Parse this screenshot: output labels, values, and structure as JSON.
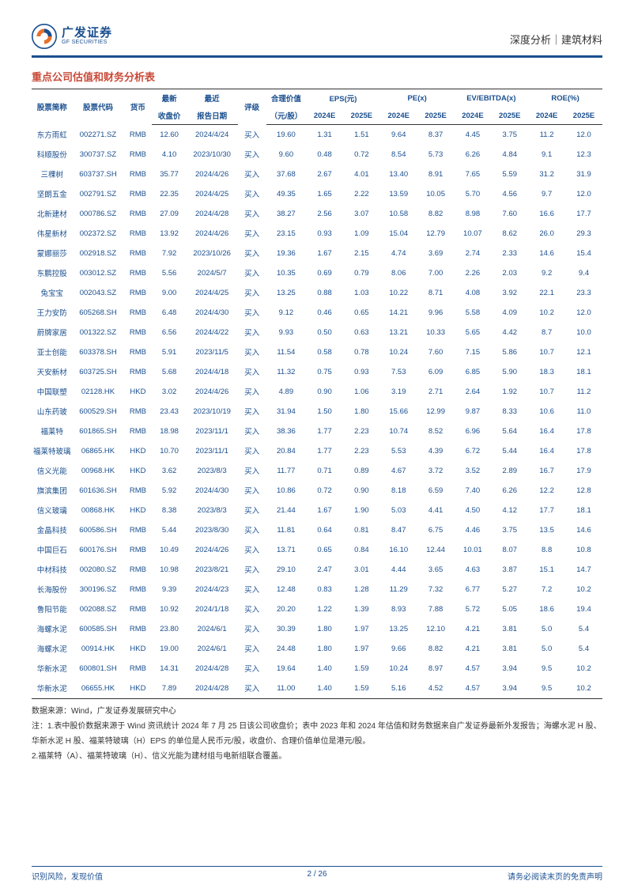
{
  "header": {
    "logo_cn": "广发证券",
    "logo_en": "GF SECURITIES",
    "right_text": "深度分析｜建筑材料"
  },
  "section_title": "重点公司估值和财务分析表",
  "table": {
    "header_row1": {
      "name": "股票简称",
      "code": "股票代码",
      "currency": "货币",
      "price_top": "最新",
      "date_top": "最近",
      "rating": "评级",
      "fair_top": "合理价值",
      "eps": "EPS(元)",
      "pe": "PE(x)",
      "ev": "EV/EBITDA(x)",
      "roe": "ROE(%)"
    },
    "header_row2": {
      "price_bot": "收盘价",
      "date_bot": "报告日期",
      "fair_bot": "（元/股）",
      "y1": "2024E",
      "y2": "2025E"
    },
    "rows": [
      [
        "东方雨虹",
        "002271.SZ",
        "RMB",
        "12.60",
        "2024/4/24",
        "买入",
        "19.60",
        "1.31",
        "1.51",
        "9.64",
        "8.37",
        "4.45",
        "3.75",
        "11.2",
        "12.0"
      ],
      [
        "科顺股份",
        "300737.SZ",
        "RMB",
        "4.10",
        "2023/10/30",
        "买入",
        "9.60",
        "0.48",
        "0.72",
        "8.54",
        "5.73",
        "6.26",
        "4.84",
        "9.1",
        "12.3"
      ],
      [
        "三棵树",
        "603737.SH",
        "RMB",
        "35.77",
        "2024/4/26",
        "买入",
        "37.68",
        "2.67",
        "4.01",
        "13.40",
        "8.91",
        "7.65",
        "5.59",
        "31.2",
        "31.9"
      ],
      [
        "坚朗五金",
        "002791.SZ",
        "RMB",
        "22.35",
        "2024/4/25",
        "买入",
        "49.35",
        "1.65",
        "2.22",
        "13.59",
        "10.05",
        "5.70",
        "4.56",
        "9.7",
        "12.0"
      ],
      [
        "北新建材",
        "000786.SZ",
        "RMB",
        "27.09",
        "2024/4/28",
        "买入",
        "38.27",
        "2.56",
        "3.07",
        "10.58",
        "8.82",
        "8.98",
        "7.60",
        "16.6",
        "17.7"
      ],
      [
        "伟星新材",
        "002372.SZ",
        "RMB",
        "13.92",
        "2024/4/26",
        "买入",
        "23.15",
        "0.93",
        "1.09",
        "15.04",
        "12.79",
        "10.07",
        "8.62",
        "26.0",
        "29.3"
      ],
      [
        "蒙娜丽莎",
        "002918.SZ",
        "RMB",
        "7.92",
        "2023/10/26",
        "买入",
        "19.36",
        "1.67",
        "2.15",
        "4.74",
        "3.69",
        "2.74",
        "2.33",
        "14.6",
        "15.4"
      ],
      [
        "东鹏控股",
        "003012.SZ",
        "RMB",
        "5.56",
        "2024/5/7",
        "买入",
        "10.35",
        "0.69",
        "0.79",
        "8.06",
        "7.00",
        "2.26",
        "2.03",
        "9.2",
        "9.4"
      ],
      [
        "兔宝宝",
        "002043.SZ",
        "RMB",
        "9.00",
        "2024/4/25",
        "买入",
        "13.25",
        "0.88",
        "1.03",
        "10.22",
        "8.71",
        "4.08",
        "3.92",
        "22.1",
        "23.3"
      ],
      [
        "王力安防",
        "605268.SH",
        "RMB",
        "6.48",
        "2024/4/30",
        "买入",
        "9.12",
        "0.46",
        "0.65",
        "14.21",
        "9.96",
        "5.58",
        "4.09",
        "10.2",
        "12.0"
      ],
      [
        "蔚牌家居",
        "001322.SZ",
        "RMB",
        "6.56",
        "2024/4/22",
        "买入",
        "9.93",
        "0.50",
        "0.63",
        "13.21",
        "10.33",
        "5.65",
        "4.42",
        "8.7",
        "10.0"
      ],
      [
        "亚士创能",
        "603378.SH",
        "RMB",
        "5.91",
        "2023/11/5",
        "买入",
        "11.54",
        "0.58",
        "0.78",
        "10.24",
        "7.60",
        "7.15",
        "5.86",
        "10.7",
        "12.1"
      ],
      [
        "天安新材",
        "603725.SH",
        "RMB",
        "5.68",
        "2024/4/18",
        "买入",
        "11.32",
        "0.75",
        "0.93",
        "7.53",
        "6.09",
        "6.85",
        "5.90",
        "18.3",
        "18.1"
      ],
      [
        "中国联塑",
        "02128.HK",
        "HKD",
        "3.02",
        "2024/4/26",
        "买入",
        "4.89",
        "0.90",
        "1.06",
        "3.19",
        "2.71",
        "2.64",
        "1.92",
        "10.7",
        "11.2"
      ],
      [
        "山东药玻",
        "600529.SH",
        "RMB",
        "23.43",
        "2023/10/19",
        "买入",
        "31.94",
        "1.50",
        "1.80",
        "15.66",
        "12.99",
        "9.87",
        "8.33",
        "10.6",
        "11.0"
      ],
      [
        "福莱特",
        "601865.SH",
        "RMB",
        "18.98",
        "2023/11/1",
        "买入",
        "38.36",
        "1.77",
        "2.23",
        "10.74",
        "8.52",
        "6.96",
        "5.64",
        "16.4",
        "17.8"
      ],
      [
        "福莱特玻璃",
        "06865.HK",
        "HKD",
        "10.70",
        "2023/11/1",
        "买入",
        "20.84",
        "1.77",
        "2.23",
        "5.53",
        "4.39",
        "6.72",
        "5.44",
        "16.4",
        "17.8"
      ],
      [
        "信义光能",
        "00968.HK",
        "HKD",
        "3.62",
        "2023/8/3",
        "买入",
        "11.77",
        "0.71",
        "0.89",
        "4.67",
        "3.72",
        "3.52",
        "2.89",
        "16.7",
        "17.9"
      ],
      [
        "旗滨集团",
        "601636.SH",
        "RMB",
        "5.92",
        "2024/4/30",
        "买入",
        "10.86",
        "0.72",
        "0.90",
        "8.18",
        "6.59",
        "7.40",
        "6.26",
        "12.2",
        "12.8"
      ],
      [
        "信义玻璃",
        "00868.HK",
        "HKD",
        "8.38",
        "2023/8/3",
        "买入",
        "21.44",
        "1.67",
        "1.90",
        "5.03",
        "4.41",
        "4.50",
        "4.12",
        "17.7",
        "18.1"
      ],
      [
        "金晶科技",
        "600586.SH",
        "RMB",
        "5.44",
        "2023/8/30",
        "买入",
        "11.81",
        "0.64",
        "0.81",
        "8.47",
        "6.75",
        "4.46",
        "3.75",
        "13.5",
        "14.6"
      ],
      [
        "中国巨石",
        "600176.SH",
        "RMB",
        "10.49",
        "2024/4/26",
        "买入",
        "13.71",
        "0.65",
        "0.84",
        "16.10",
        "12.44",
        "10.01",
        "8.07",
        "8.8",
        "10.8"
      ],
      [
        "中材科技",
        "002080.SZ",
        "RMB",
        "10.98",
        "2023/8/21",
        "买入",
        "29.10",
        "2.47",
        "3.01",
        "4.44",
        "3.65",
        "4.63",
        "3.87",
        "15.1",
        "14.7"
      ],
      [
        "长海股份",
        "300196.SZ",
        "RMB",
        "9.39",
        "2024/4/23",
        "买入",
        "12.48",
        "0.83",
        "1.28",
        "11.29",
        "7.32",
        "6.77",
        "5.27",
        "7.2",
        "10.2"
      ],
      [
        "鲁阳节能",
        "002088.SZ",
        "RMB",
        "10.92",
        "2024/1/18",
        "买入",
        "20.20",
        "1.22",
        "1.39",
        "8.93",
        "7.88",
        "5.72",
        "5.05",
        "18.6",
        "19.4"
      ],
      [
        "海螺水泥",
        "600585.SH",
        "RMB",
        "23.80",
        "2024/6/1",
        "买入",
        "30.39",
        "1.80",
        "1.97",
        "13.25",
        "12.10",
        "4.21",
        "3.81",
        "5.0",
        "5.4"
      ],
      [
        "海螺水泥",
        "00914.HK",
        "HKD",
        "19.00",
        "2024/6/1",
        "买入",
        "24.48",
        "1.80",
        "1.97",
        "9.66",
        "8.82",
        "4.21",
        "3.81",
        "5.0",
        "5.4"
      ],
      [
        "华新水泥",
        "600801.SH",
        "RMB",
        "14.31",
        "2024/4/28",
        "买入",
        "19.64",
        "1.40",
        "1.59",
        "10.24",
        "8.97",
        "4.57",
        "3.94",
        "9.5",
        "10.2"
      ],
      [
        "华新水泥",
        "06655.HK",
        "HKD",
        "7.89",
        "2024/4/28",
        "买入",
        "11.00",
        "1.40",
        "1.59",
        "5.16",
        "4.52",
        "4.57",
        "3.94",
        "9.5",
        "10.2"
      ]
    ]
  },
  "notes": {
    "source": "数据来源：Wind，广发证券发展研究中心",
    "note1": "注：1.表中股价数据来源于 Wind 资讯统计 2024 年 7 月 25 日该公司收盘价；表中 2023 年和 2024 年估值和财务数据来自广发证券最新外发报告；海螺水泥 H 股、华新水泥 H 股、福莱特玻璃（H）EPS 的单位是人民币元/股，收盘价、合理价值单位是港元/股。",
    "note2": "2.福莱特（A）、福莱特玻璃（H）、信义光能为建材组与电新组联合覆盖。"
  },
  "footer": {
    "left": "识别风险，发现价值",
    "right": "请务必阅读末页的免责声明",
    "center": "2 / 26"
  },
  "colors": {
    "primary": "#1a4f8f",
    "accent": "#c94b3a",
    "text": "#333333",
    "logo_orange": "#e8702a"
  }
}
